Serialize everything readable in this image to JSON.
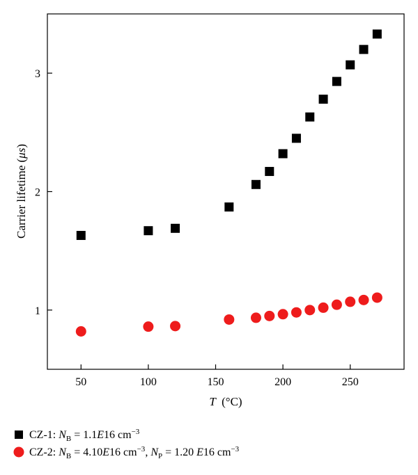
{
  "chart_data": {
    "type": "scatter",
    "xlabel_symbol": "T",
    "xlabel_unit": "(°C)",
    "ylabel_text": "Carrier lifetime (",
    "ylabel_symbol": "μs",
    "ylabel_close": ")",
    "xlim": [
      25,
      290
    ],
    "ylim": [
      0.5,
      3.5
    ],
    "x_ticks": [
      50,
      100,
      150,
      200,
      250
    ],
    "y_ticks": [
      1,
      2,
      3
    ],
    "legend_position": "bottom",
    "series": [
      {
        "name": "CZ-1: N_B = 1.1E16 cm^-3",
        "marker": "square",
        "color": "#000000",
        "legend": {
          "prefix": "CZ-1: ",
          "parts": [
            {
              "t": "N",
              "i": true
            },
            {
              "t": "B",
              "sub": true
            },
            {
              "t": " = 1.1"
            },
            {
              "t": "E",
              "i": true
            },
            {
              "t": "16 cm"
            },
            {
              "t": "−3",
              "sup": true
            }
          ]
        },
        "x": [
          50,
          100,
          120,
          160,
          180,
          190,
          200,
          210,
          220,
          230,
          240,
          250,
          260,
          270
        ],
        "y": [
          1.63,
          1.67,
          1.69,
          1.87,
          2.06,
          2.17,
          2.32,
          2.45,
          2.63,
          2.78,
          2.93,
          3.07,
          3.2,
          3.33
        ]
      },
      {
        "name": "CZ-2: N_B = 4.10E16 cm^-3, N_P = 1.20 E16 cm^-3",
        "marker": "circle",
        "color": "#ee1c1c",
        "legend": {
          "prefix": "CZ-2: ",
          "parts": [
            {
              "t": "N",
              "i": true
            },
            {
              "t": "B",
              "sub": true
            },
            {
              "t": " = 4.10"
            },
            {
              "t": "E",
              "i": true
            },
            {
              "t": "16 cm"
            },
            {
              "t": "−3",
              "sup": true
            },
            {
              "t": ", "
            },
            {
              "t": "N",
              "i": true
            },
            {
              "t": "P",
              "sub": true
            },
            {
              "t": " = 1.20 "
            },
            {
              "t": "E",
              "i": true
            },
            {
              "t": "16 cm"
            },
            {
              "t": "−3",
              "sup": true
            }
          ]
        },
        "x": [
          50,
          100,
          120,
          160,
          180,
          190,
          200,
          210,
          220,
          230,
          240,
          250,
          260,
          270
        ],
        "y": [
          0.82,
          0.86,
          0.865,
          0.92,
          0.935,
          0.95,
          0.965,
          0.98,
          1.0,
          1.02,
          1.045,
          1.07,
          1.085,
          1.105
        ]
      }
    ]
  }
}
